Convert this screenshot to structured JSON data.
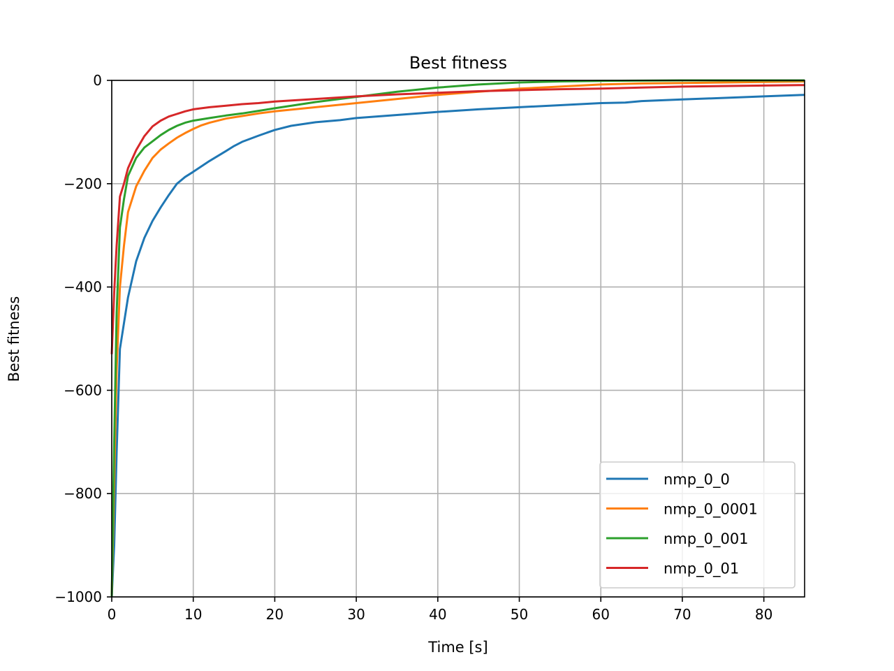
{
  "chart_data": {
    "type": "line",
    "title": "Best fitness",
    "xlabel": "Time [s]",
    "ylabel": "Best fitness",
    "xlim": [
      0,
      85
    ],
    "ylim": [
      -1000,
      0
    ],
    "xticks": [
      0,
      10,
      20,
      30,
      40,
      50,
      60,
      70,
      80
    ],
    "yticks": [
      0,
      -200,
      -400,
      -600,
      -800,
      -1000
    ],
    "ytick_labels": [
      "0",
      "−200",
      "−400",
      "−600",
      "−800",
      "−1000"
    ],
    "grid": true,
    "legend_position": "lower-right",
    "series": [
      {
        "name": "nmp_0_0",
        "color": "#1f77b4",
        "x": [
          0,
          0.3,
          0.6,
          1,
          1.5,
          2,
          3,
          4,
          5,
          6,
          7,
          8,
          9,
          10,
          12,
          14,
          15,
          16,
          18,
          20,
          22,
          25,
          28,
          30,
          35,
          40,
          45,
          50,
          55,
          60,
          63,
          65,
          70,
          75,
          80,
          85
        ],
        "y": [
          -1000,
          -900,
          -720,
          -520,
          -470,
          -420,
          -350,
          -305,
          -272,
          -246,
          -222,
          -200,
          -187,
          -177,
          -156,
          -137,
          -127,
          -119,
          -107,
          -96,
          -88,
          -81,
          -77,
          -73,
          -67,
          -61,
          -56,
          -52,
          -48,
          -44,
          -43,
          -40,
          -37,
          -34,
          -31,
          -28
        ]
      },
      {
        "name": "nmp_0_0001",
        "color": "#ff7f0e",
        "x": [
          0,
          0.3,
          0.6,
          1,
          1.5,
          2,
          3,
          4,
          5,
          6,
          7,
          8,
          9,
          10,
          11,
          12,
          14,
          16,
          18,
          20,
          25,
          30,
          35,
          40,
          45,
          50,
          55,
          60,
          65,
          70,
          75,
          80,
          85
        ],
        "y": [
          -1000,
          -780,
          -560,
          -400,
          -320,
          -255,
          -205,
          -175,
          -150,
          -134,
          -122,
          -111,
          -102,
          -94,
          -87,
          -82,
          -74,
          -69,
          -64,
          -60,
          -52,
          -44,
          -36,
          -28,
          -22,
          -16,
          -12,
          -8,
          -6,
          -5,
          -4,
          -3,
          -2
        ]
      },
      {
        "name": "nmp_0_001",
        "color": "#2ca02c",
        "x": [
          0,
          0.3,
          0.6,
          1,
          1.5,
          2,
          3,
          4,
          5,
          6,
          7,
          8,
          9,
          10,
          12,
          14,
          16,
          18,
          20,
          25,
          30,
          35,
          40,
          45,
          50,
          55,
          60,
          70,
          85
        ],
        "y": [
          -1000,
          -700,
          -450,
          -285,
          -230,
          -185,
          -150,
          -130,
          -118,
          -106,
          -96,
          -88,
          -82,
          -78,
          -73,
          -68,
          -64,
          -59,
          -54,
          -42,
          -32,
          -22,
          -14,
          -8,
          -4,
          -2,
          -1,
          0,
          0
        ]
      },
      {
        "name": "nmp_0_01",
        "color": "#d62728",
        "x": [
          0,
          0.3,
          0.6,
          1,
          1.5,
          2,
          3,
          4,
          5,
          6,
          7,
          8,
          9,
          10,
          12,
          14,
          16,
          18,
          20,
          25,
          30,
          35,
          40,
          45,
          50,
          55,
          60,
          65,
          70,
          75,
          80,
          85
        ],
        "y": [
          -530,
          -410,
          -320,
          -225,
          -200,
          -170,
          -135,
          -108,
          -89,
          -78,
          -70,
          -65,
          -60,
          -56,
          -52,
          -49,
          -46,
          -44,
          -41,
          -36,
          -31,
          -27,
          -24,
          -21,
          -19,
          -17,
          -16,
          -14,
          -12,
          -11,
          -10,
          -9
        ]
      }
    ]
  }
}
